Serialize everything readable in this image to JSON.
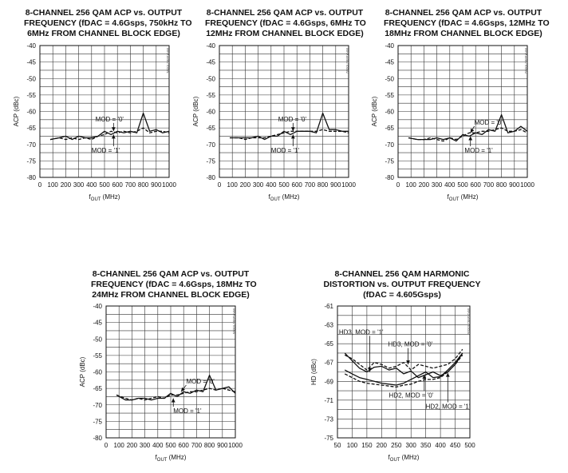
{
  "chart_data": [
    {
      "type": "line",
      "title_lines": [
        "8-CHANNEL 256 QAM ACP vs. OUTPUT",
        "FREQUENCY (fDAC = 4.6Gsps, 750kHz TO",
        "6MHz FROM CHANNEL BLOCK EDGE)"
      ],
      "xlabel": "fOUT (MHz)",
      "ylabel": "ACP (dBc)",
      "xlim": [
        0,
        1000
      ],
      "ylim": [
        -80,
        -40
      ],
      "x_ticks": [
        0,
        100,
        200,
        300,
        400,
        500,
        600,
        700,
        800,
        900,
        1000
      ],
      "y_ticks": [
        -40,
        -45,
        -50,
        -55,
        -60,
        -65,
        -70,
        -75,
        -80
      ],
      "grid": true,
      "watermark": "MAX5882 toc01",
      "x": [
        80,
        150,
        200,
        250,
        300,
        350,
        400,
        450,
        500,
        550,
        600,
        650,
        700,
        750,
        800,
        850,
        900,
        950,
        1000
      ],
      "series": [
        {
          "name": "MOD = '0'",
          "values": [
            -68.5,
            -68,
            -68.5,
            -68,
            -68.5,
            -68,
            -68.5,
            -67.5,
            -67,
            -66,
            -66.5,
            -66,
            -66.5,
            -66,
            -65,
            -66.5,
            -66,
            -66,
            -66.5
          ]
        },
        {
          "name": "MOD = '1'",
          "values": [
            -68.5,
            -68,
            -67.5,
            -68.5,
            -67.5,
            -68,
            -68,
            -67.5,
            -66,
            -67,
            -66,
            -66.5,
            -66,
            -66.5,
            -60.5,
            -66,
            -65.5,
            -66.5,
            -66
          ]
        }
      ],
      "annotations": [
        {
          "text": "MOD = '0'",
          "x": 570,
          "y": -66,
          "label_x": 430,
          "label_y": -63
        },
        {
          "text": "MOD = '1'",
          "x": 570,
          "y": -67,
          "label_x": 400,
          "label_y": -72.5
        }
      ]
    },
    {
      "type": "line",
      "title_lines": [
        "8-CHANNEL 256 QAM ACP vs. OUTPUT",
        "FREQUENCY (fDAC = 4.6Gsps, 6MHz TO",
        "12MHz FROM CHANNEL BLOCK EDGE)"
      ],
      "xlabel": "fOUT (MHz)",
      "ylabel": "ACP (dBc)",
      "xlim": [
        0,
        1000
      ],
      "ylim": [
        -80,
        -40
      ],
      "x_ticks": [
        0,
        100,
        200,
        300,
        400,
        500,
        600,
        700,
        800,
        900,
        1000
      ],
      "y_ticks": [
        -40,
        -45,
        -50,
        -55,
        -60,
        -65,
        -70,
        -75,
        -80
      ],
      "grid": true,
      "watermark": "MAX5882 toc02",
      "x": [
        80,
        150,
        200,
        250,
        300,
        350,
        400,
        450,
        500,
        550,
        600,
        650,
        700,
        750,
        800,
        850,
        900,
        950,
        1000
      ],
      "series": [
        {
          "name": "MOD = '0'",
          "values": [
            -68,
            -68,
            -68.5,
            -68,
            -68,
            -68,
            -67.5,
            -67,
            -66.5,
            -66,
            -66,
            -66,
            -66,
            -66,
            -65.5,
            -66,
            -66,
            -66,
            -66.5
          ]
        },
        {
          "name": "MOD = '1'",
          "values": [
            -68,
            -68,
            -68,
            -68,
            -67.5,
            -68.5,
            -67.5,
            -67.5,
            -66,
            -67,
            -66,
            -66,
            -66,
            -66.5,
            -60.5,
            -65.5,
            -65.5,
            -66,
            -66
          ]
        }
      ],
      "annotations": [
        {
          "text": "MOD = '0'",
          "x": 570,
          "y": -66,
          "label_x": 455,
          "label_y": -63
        },
        {
          "text": "MOD = '1'",
          "x": 570,
          "y": -67,
          "label_x": 400,
          "label_y": -72.5
        }
      ]
    },
    {
      "type": "line",
      "title_lines": [
        "8-CHANNEL 256 QAM ACP vs. OUTPUT",
        "FREQUENCY (fDAC = 4.6Gsps, 12MHz TO",
        "18MHz FROM CHANNEL BLOCK EDGE)"
      ],
      "xlabel": "fOUT (MHz)",
      "ylabel": "ACP (dBc)",
      "xlim": [
        0,
        1000
      ],
      "ylim": [
        -80,
        -40
      ],
      "x_ticks": [
        0,
        100,
        200,
        300,
        400,
        500,
        600,
        700,
        800,
        900,
        1000
      ],
      "y_ticks": [
        -40,
        -45,
        -50,
        -55,
        -60,
        -65,
        -70,
        -75,
        -80
      ],
      "grid": true,
      "watermark": "MAX5882 toc03",
      "x": [
        80,
        150,
        200,
        250,
        300,
        350,
        400,
        450,
        500,
        550,
        600,
        650,
        700,
        750,
        800,
        850,
        900,
        950,
        1000
      ],
      "series": [
        {
          "name": "MOD = '0'",
          "values": [
            -68,
            -68.5,
            -68.5,
            -68,
            -68.5,
            -69,
            -68,
            -68.5,
            -67.5,
            -66.5,
            -66.5,
            -66,
            -66,
            -65.5,
            -65,
            -66,
            -66,
            -65.5,
            -66.5
          ]
        },
        {
          "name": "MOD = '1'",
          "values": [
            -68,
            -68.5,
            -68.5,
            -68.5,
            -68,
            -68.5,
            -68,
            -69,
            -67,
            -67.5,
            -66.5,
            -67,
            -65.5,
            -66,
            -61,
            -66.5,
            -66,
            -64.5,
            -66
          ]
        }
      ],
      "annotations": [
        {
          "text": "MOD = '0'",
          "x": 560,
          "y": -66.5,
          "label_x": 590,
          "label_y": -64
        },
        {
          "text": "MOD = '1'",
          "x": 560,
          "y": -67.5,
          "label_x": 515,
          "label_y": -72.5
        }
      ]
    },
    {
      "type": "line",
      "title_lines": [
        "8-CHANNEL 256 QAM ACP vs. OUTPUT",
        "FREQUENCY (fDAC = 4.6Gsps, 18MHz TO",
        "24MHz FROM CHANNEL BLOCK EDGE)"
      ],
      "xlabel": "fOUT (MHz)",
      "ylabel": "ACP (dBc)",
      "xlim": [
        0,
        1000
      ],
      "ylim": [
        -80,
        -40
      ],
      "x_ticks": [
        0,
        100,
        200,
        300,
        400,
        500,
        600,
        700,
        800,
        900,
        1000
      ],
      "y_ticks": [
        -40,
        -45,
        -50,
        -55,
        -60,
        -65,
        -70,
        -75,
        -80
      ],
      "grid": true,
      "watermark": "MAX5882 toc04",
      "x": [
        80,
        150,
        200,
        250,
        300,
        350,
        400,
        450,
        500,
        550,
        600,
        650,
        700,
        750,
        800,
        850,
        900,
        950,
        1000
      ],
      "series": [
        {
          "name": "MOD = '0'",
          "values": [
            -67,
            -68,
            -68.5,
            -68,
            -68.5,
            -68,
            -67.5,
            -68,
            -67,
            -67,
            -66.5,
            -66,
            -66,
            -65.5,
            -65,
            -65.5,
            -65,
            -65.5,
            -66
          ]
        },
        {
          "name": "MOD = '1'",
          "values": [
            -67,
            -68.5,
            -68.5,
            -68,
            -68,
            -68.5,
            -68,
            -68,
            -66.5,
            -67.5,
            -66,
            -66.5,
            -65.5,
            -66,
            -61,
            -65.5,
            -65,
            -64.5,
            -66.5
          ]
        }
      ],
      "annotations": [
        {
          "text": "MOD = '0'",
          "x": 580,
          "y": -66,
          "label_x": 620,
          "label_y": -63.5
        },
        {
          "text": "MOD = '1'",
          "x": 520,
          "y": -68,
          "label_x": 520,
          "label_y": -72.5
        }
      ]
    },
    {
      "type": "line",
      "title_lines": [
        "8-CHANNEL 256 QAM HARMONIC",
        "DISTORTION vs. OUTPUT FREQUENCY",
        "(fDAC = 4.605Gsps)"
      ],
      "xlabel": "fOUT (MHz)",
      "ylabel": "HD (dBc)",
      "xlim": [
        50,
        500
      ],
      "ylim": [
        -75,
        -61
      ],
      "x_ticks": [
        50,
        100,
        150,
        200,
        250,
        300,
        350,
        400,
        450,
        500
      ],
      "y_ticks": [
        -61,
        -63,
        -65,
        -67,
        -69,
        -71,
        -73,
        -75
      ],
      "grid": true,
      "watermark": "MAX5882 toc05",
      "x": [
        75,
        100,
        125,
        150,
        175,
        200,
        225,
        250,
        275,
        300,
        325,
        350,
        375,
        400,
        425,
        450,
        475
      ],
      "series": [
        {
          "name": "HD3, MOD = '1'",
          "style": "solid",
          "values": [
            -66.0,
            -66.8,
            -67.6,
            -68.0,
            -67.5,
            -67.4,
            -67.8,
            -67.6,
            -68.2,
            -67.9,
            -68.6,
            -68.3,
            -68.0,
            -68.4,
            -68.0,
            -67.2,
            -66.0
          ]
        },
        {
          "name": "HD3, MOD = '0'",
          "style": "dashed",
          "values": [
            -66.2,
            -66.6,
            -67.2,
            -67.8,
            -67.0,
            -67.2,
            -67.6,
            -67.4,
            -67.0,
            -67.8,
            -67.2,
            -67.4,
            -67.6,
            -67.4,
            -67.2,
            -66.6,
            -65.6
          ]
        },
        {
          "name": "HD2, MOD = '0'",
          "style": "solid",
          "values": [
            -67.8,
            -68.2,
            -68.6,
            -68.8,
            -69.0,
            -69.2,
            -69.3,
            -69.4,
            -69.2,
            -68.8,
            -68.4,
            -68.0,
            -68.6,
            -68.5,
            -67.8,
            -67.0,
            -66.0
          ]
        },
        {
          "name": "HD2, MOD = '1'",
          "style": "dashed",
          "values": [
            -68.2,
            -68.6,
            -69.0,
            -69.2,
            -69.3,
            -69.4,
            -69.5,
            -69.6,
            -69.4,
            -69.3,
            -69.0,
            -68.8,
            -68.8,
            -68.6,
            -68.0,
            -67.2,
            -66.2
          ]
        }
      ],
      "annotations": [
        {
          "text": "HD3, MOD = '1'",
          "x": 160,
          "y": -68,
          "label_x": 55,
          "label_y": -64
        },
        {
          "text": "HD3, MOD = '0'",
          "x": 290,
          "y": -67.2,
          "label_x": 222,
          "label_y": -65.3
        },
        {
          "text": "HD2, MOD = '0'",
          "x": 345,
          "y": -68.3,
          "label_x": 225,
          "label_y": -70.7
        },
        {
          "text": "HD2, MOD = '1'",
          "x": 425,
          "y": -68.1,
          "label_x": 350,
          "label_y": -71.9
        }
      ]
    }
  ]
}
